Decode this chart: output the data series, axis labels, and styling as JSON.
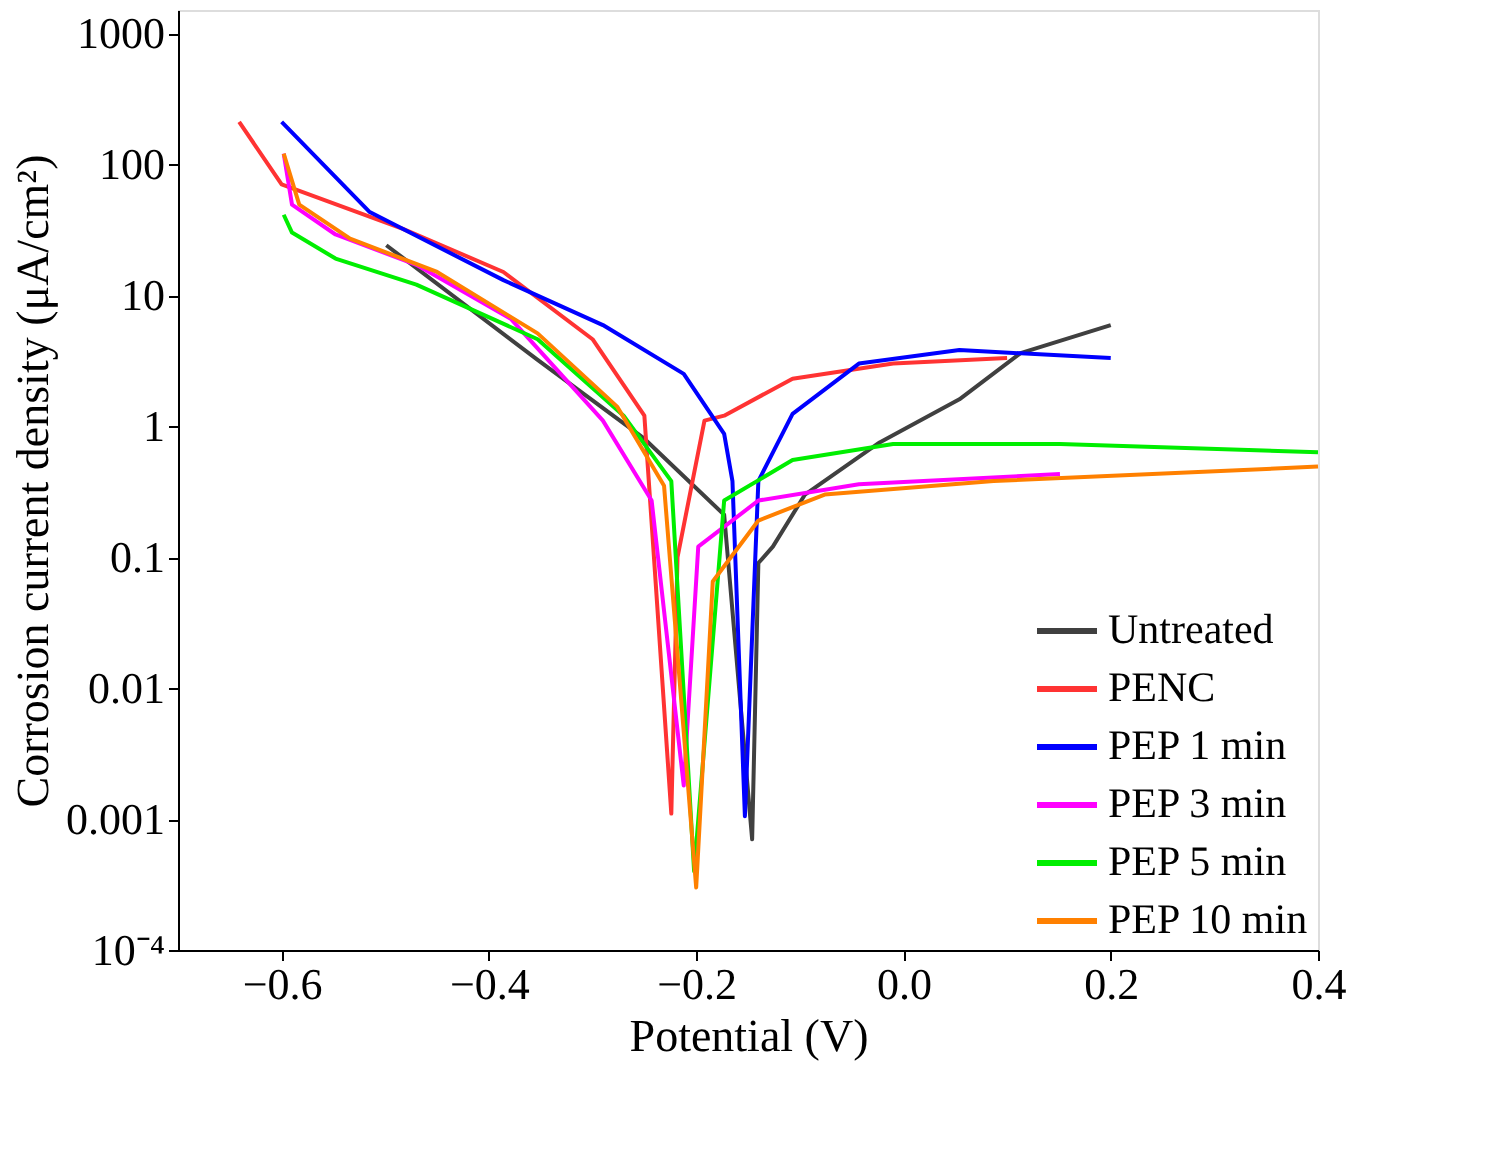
{
  "chart_data": {
    "type": "line",
    "xlabel": "Potential (V)",
    "ylabel": "Corrosion current density (μA/cm²)",
    "xlim": [
      -0.7,
      0.4
    ],
    "ylim": [
      0.0001,
      1500
    ],
    "log": "y",
    "grid": false,
    "legend": "bottom right",
    "line_style": "solid",
    "marker": "none",
    "xticks": [
      {
        "value": -0.6,
        "label": "−0.6"
      },
      {
        "value": -0.4,
        "label": "−0.4"
      },
      {
        "value": -0.2,
        "label": "−0.2"
      },
      {
        "value": 0,
        "label": "0.0"
      },
      0.2,
      0.4
    ],
    "yticks": [
      {
        "value": 0.0001,
        "label": "10⁻⁴"
      },
      0.001,
      0.01,
      0.1,
      1,
      10,
      100,
      1000
    ],
    "series": [
      {
        "name": "Untreated",
        "color": "#404040",
        "x": [
          -0.499,
          -0.353,
          -0.25,
          -0.173,
          -0.146,
          -0.14,
          -0.126,
          -0.095,
          -0.023,
          0.054,
          0.113,
          0.2
        ],
        "values": [
          24,
          3.2,
          0.8,
          0.21,
          0.0007,
          0.09,
          0.12,
          0.3,
          0.75,
          1.6,
          3.6,
          5.9
        ]
      },
      {
        "name": "PENC",
        "color": "#ff3333",
        "x": [
          -0.641,
          -0.6,
          -0.483,
          -0.386,
          -0.3,
          -0.25,
          -0.224,
          -0.218,
          -0.192,
          -0.173,
          -0.107,
          -0.01,
          0.1
        ],
        "values": [
          210,
          70,
          32,
          15,
          4.6,
          1.2,
          0.0011,
          0.1,
          1.1,
          1.2,
          2.3,
          3,
          3.3
        ]
      },
      {
        "name": "PEP 1 min",
        "color": "#0000ff",
        "x": [
          -0.6,
          -0.515,
          -0.386,
          -0.29,
          -0.212,
          -0.173,
          -0.165,
          -0.153,
          -0.14,
          -0.107,
          -0.043,
          0.054,
          0.2
        ],
        "values": [
          210,
          43,
          13,
          5.9,
          2.5,
          0.87,
          0.38,
          0.00105,
          0.38,
          1.24,
          3,
          3.8,
          3.3
        ]
      },
      {
        "name": "PEP 3 min",
        "color": "#ff00ff",
        "x": [
          -0.598,
          -0.59,
          -0.548,
          -0.47,
          -0.379,
          -0.29,
          -0.243,
          -0.212,
          -0.198,
          -0.14,
          -0.043,
          0.151
        ],
        "values": [
          120,
          49,
          29,
          17,
          6.6,
          1.1,
          0.27,
          0.0018,
          0.12,
          0.27,
          0.36,
          0.43
        ]
      },
      {
        "name": "PEP 5 min",
        "color": "#00ee00",
        "x": [
          -0.598,
          -0.59,
          -0.548,
          -0.47,
          -0.353,
          -0.27,
          -0.224,
          -0.202,
          -0.173,
          -0.107,
          -0.01,
          0.151,
          0.4
        ],
        "values": [
          41,
          30,
          19,
          12,
          4.6,
          1.2,
          0.38,
          0.0004,
          0.27,
          0.55,
          0.73,
          0.73,
          0.63
        ]
      },
      {
        "name": "PEP 10 min",
        "color": "#ff8000",
        "x": [
          -0.598,
          -0.583,
          -0.534,
          -0.45,
          -0.353,
          -0.276,
          -0.231,
          -0.2,
          -0.184,
          -0.14,
          -0.076,
          0.087,
          0.4
        ],
        "values": [
          120,
          49,
          27,
          15,
          5.1,
          1.4,
          0.35,
          0.0003,
          0.065,
          0.19,
          0.3,
          0.38,
          0.49
        ]
      }
    ]
  }
}
